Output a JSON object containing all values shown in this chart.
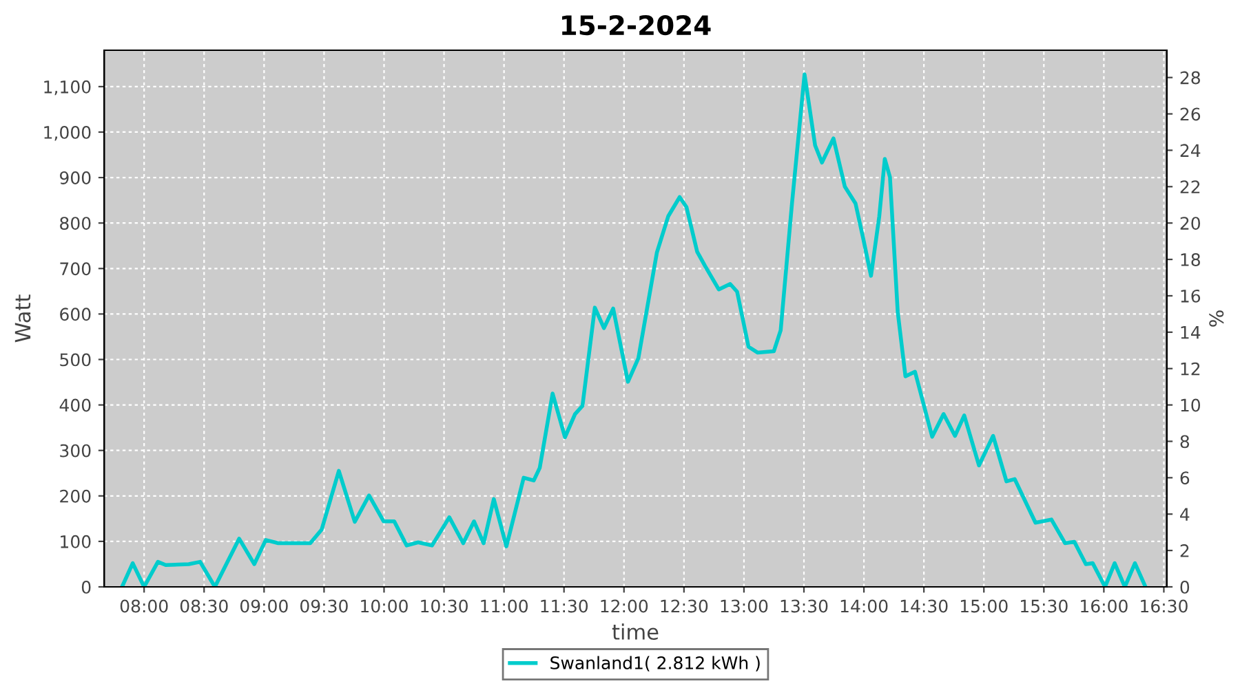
{
  "chart_data": {
    "type": "line",
    "title": "15-2-2024",
    "xlabel": "time",
    "ylabel": "Watt",
    "y2label": "%",
    "x": [
      7.816,
      7.905,
      8.0,
      8.115,
      8.18,
      8.372,
      8.467,
      8.59,
      8.792,
      8.918,
      9.014,
      9.118,
      9.385,
      9.48,
      9.623,
      9.756,
      9.875,
      9.997,
      10.085,
      10.188,
      10.284,
      10.4,
      10.544,
      10.66,
      10.75,
      10.83,
      10.915,
      11.02,
      11.164,
      11.248,
      11.298,
      11.405,
      11.508,
      11.592,
      11.654,
      11.757,
      11.833,
      11.91,
      12.033,
      12.12,
      12.274,
      12.369,
      12.464,
      12.521,
      12.61,
      12.675,
      12.79,
      12.885,
      12.943,
      13.038,
      13.115,
      13.249,
      13.306,
      13.401,
      13.505,
      13.593,
      13.65,
      13.746,
      13.841,
      13.93,
      13.995,
      14.059,
      14.128,
      14.174,
      14.217,
      14.282,
      14.346,
      14.426,
      14.569,
      14.664,
      14.759,
      14.836,
      14.959,
      15.077,
      15.188,
      15.257,
      15.43,
      15.563,
      15.677,
      15.754,
      15.85,
      15.907,
      16.01,
      16.09,
      16.175,
      16.259,
      16.347
    ],
    "series": [
      {
        "name": "Swanland1( 2.812 kWh )",
        "color": "#00cccc",
        "values": [
          0,
          52,
          0,
          55,
          48,
          50,
          55,
          0,
          106,
          50,
          103,
          96,
          96,
          126,
          255,
          143,
          201,
          144,
          144,
          91,
          98,
          91,
          153,
          96,
          144,
          96,
          193,
          89,
          240,
          234,
          262,
          425,
          329,
          380,
          398,
          614,
          569,
          612,
          451,
          503,
          735,
          815,
          857,
          835,
          737,
          706,
          654,
          666,
          649,
          528,
          515,
          518,
          564,
          845,
          1127,
          971,
          933,
          986,
          880,
          843,
          765,
          684,
          815,
          941,
          901,
          604,
          463,
          473,
          330,
          380,
          332,
          377,
          267,
          332,
          232,
          237,
          141,
          148,
          96,
          99,
          50,
          52,
          0,
          52,
          0,
          52,
          0
        ]
      }
    ],
    "xlim": [
      7.667,
      16.525
    ],
    "xticks": [
      {
        "value": 8.0,
        "label": "08:00"
      },
      {
        "value": 8.5,
        "label": "08:30"
      },
      {
        "value": 9.0,
        "label": "09:00"
      },
      {
        "value": 9.5,
        "label": "09:30"
      },
      {
        "value": 10.0,
        "label": "10:00"
      },
      {
        "value": 10.5,
        "label": "10:30"
      },
      {
        "value": 11.0,
        "label": "11:00"
      },
      {
        "value": 11.5,
        "label": "11:30"
      },
      {
        "value": 12.0,
        "label": "12:00"
      },
      {
        "value": 12.5,
        "label": "12:30"
      },
      {
        "value": 13.0,
        "label": "13:00"
      },
      {
        "value": 13.5,
        "label": "13:30"
      },
      {
        "value": 14.0,
        "label": "14:00"
      },
      {
        "value": 14.5,
        "label": "14:30"
      },
      {
        "value": 15.0,
        "label": "15:00"
      },
      {
        "value": 15.5,
        "label": "15:30"
      },
      {
        "value": 16.0,
        "label": "16:00"
      },
      {
        "value": 16.5,
        "label": "16:30"
      }
    ],
    "ylim": [
      0,
      1180
    ],
    "yticks": [
      0,
      100,
      200,
      300,
      400,
      500,
      600,
      700,
      800,
      900,
      {
        "value": 1000,
        "label": "1,000"
      },
      {
        "value": 1100,
        "label": "1,100"
      }
    ],
    "y2lim": [
      0,
      29.5
    ],
    "y2ticks": [
      0,
      2,
      4,
      6,
      8,
      10,
      12,
      14,
      16,
      18,
      20,
      22,
      24,
      26,
      28
    ],
    "grid": true,
    "legend": "bottom",
    "marker": "none",
    "line_style": "solid"
  }
}
